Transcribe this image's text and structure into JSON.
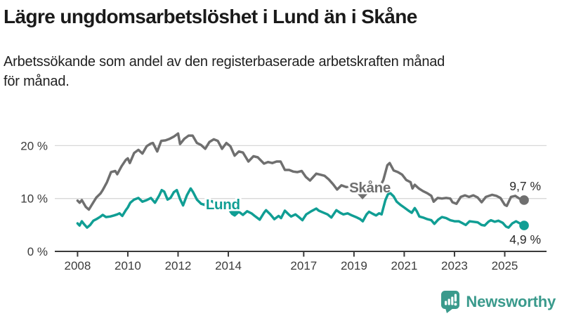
{
  "header": {
    "title": "Lägre ungdomsarbetslöshet i Lund än i Skåne",
    "subtitle_line1": "Arbetssökande som andel av den registerbaserade arbetskraften månad",
    "subtitle_line2": "för månad."
  },
  "branding": {
    "name": "Newsworthy",
    "icon": "newsworthy-speech-bubble-bar-chart-icon",
    "icon_color": "#3a9a8c",
    "text_color": "#3a9a8c"
  },
  "chart_data": {
    "type": "line",
    "title": "Lägre ungdomsarbetslöshet i Lund än i Skåne",
    "subtitle": "Arbetssökande som andel av den registerbaserade arbetskraften månad för månad.",
    "unit": "%",
    "grid": true,
    "legend_position": "inline-labels",
    "x_axis": {
      "range": [
        2007.9,
        2026.6
      ],
      "ticks": [
        {
          "value": 2008,
          "label": "2008"
        },
        {
          "value": 2010,
          "label": "2010"
        },
        {
          "value": 2012,
          "label": "2012"
        },
        {
          "value": 2014,
          "label": "2014"
        },
        {
          "value": 2017,
          "label": "2017"
        },
        {
          "value": 2019,
          "label": "2019"
        },
        {
          "value": 2021,
          "label": "2021"
        },
        {
          "value": 2023,
          "label": "2023"
        },
        {
          "value": 2025,
          "label": "2025"
        }
      ]
    },
    "y_axis": {
      "range": [
        0,
        24
      ],
      "ticks": [
        {
          "value": 0,
          "label": "0 %"
        },
        {
          "value": 10,
          "label": "10 %"
        },
        {
          "value": 20,
          "label": "20 %"
        }
      ]
    },
    "colors": {
      "gridline": "#d8d8d8",
      "axis": "#3a3a3a",
      "tick_text": "#3c3c3c",
      "annotation_text": "#2b2b2b"
    },
    "series": [
      {
        "name": "Skåne",
        "color": "#6f6f6f",
        "end_label": "9,7 %",
        "end_value": 9.7,
        "label_pos": {
          "year": 2018.81,
          "value": 11.15
        },
        "pointer": {
          "year": 2019.34,
          "value": 9.83
        },
        "points": [
          [
            2008.0,
            9.6
          ],
          [
            2008.08,
            9.2
          ],
          [
            2008.17,
            9.7
          ],
          [
            2008.33,
            8.4
          ],
          [
            2008.45,
            7.9
          ],
          [
            2008.58,
            8.9
          ],
          [
            2008.75,
            10.2
          ],
          [
            2008.92,
            11.0
          ],
          [
            2009.0,
            11.6
          ],
          [
            2009.17,
            13.1
          ],
          [
            2009.33,
            15.0
          ],
          [
            2009.5,
            15.2
          ],
          [
            2009.58,
            14.6
          ],
          [
            2009.75,
            16.1
          ],
          [
            2009.92,
            17.3
          ],
          [
            2010.0,
            17.6
          ],
          [
            2010.08,
            16.7
          ],
          [
            2010.25,
            18.6
          ],
          [
            2010.42,
            19.2
          ],
          [
            2010.58,
            18.5
          ],
          [
            2010.75,
            19.9
          ],
          [
            2010.92,
            20.4
          ],
          [
            2011.0,
            20.5
          ],
          [
            2011.17,
            18.9
          ],
          [
            2011.33,
            20.9
          ],
          [
            2011.5,
            21.0
          ],
          [
            2011.67,
            21.3
          ],
          [
            2011.83,
            21.7
          ],
          [
            2012.0,
            22.3
          ],
          [
            2012.08,
            20.3
          ],
          [
            2012.25,
            21.3
          ],
          [
            2012.42,
            21.9
          ],
          [
            2012.58,
            21.9
          ],
          [
            2012.75,
            20.5
          ],
          [
            2012.92,
            20.1
          ],
          [
            2013.08,
            19.4
          ],
          [
            2013.25,
            20.7
          ],
          [
            2013.42,
            21.2
          ],
          [
            2013.58,
            20.9
          ],
          [
            2013.75,
            19.4
          ],
          [
            2013.92,
            20.5
          ],
          [
            2014.08,
            19.9
          ],
          [
            2014.25,
            18.1
          ],
          [
            2014.42,
            18.9
          ],
          [
            2014.58,
            18.7
          ],
          [
            2014.8,
            17.0
          ],
          [
            2015.0,
            18.0
          ],
          [
            2015.17,
            17.8
          ],
          [
            2015.42,
            16.6
          ],
          [
            2015.58,
            16.9
          ],
          [
            2015.75,
            16.7
          ],
          [
            2015.92,
            17.0
          ],
          [
            2016.08,
            17.0
          ],
          [
            2016.25,
            15.4
          ],
          [
            2016.42,
            15.4
          ],
          [
            2016.58,
            15.1
          ],
          [
            2016.75,
            15.0
          ],
          [
            2016.92,
            15.2
          ],
          [
            2017.08,
            14.1
          ],
          [
            2017.25,
            13.4
          ],
          [
            2017.5,
            14.7
          ],
          [
            2017.67,
            14.5
          ],
          [
            2017.83,
            14.3
          ],
          [
            2018.0,
            13.6
          ],
          [
            2018.17,
            12.7
          ],
          [
            2018.33,
            11.7
          ],
          [
            2018.5,
            12.5
          ],
          [
            2018.67,
            12.2
          ],
          [
            2018.83,
            12.1
          ],
          [
            2019.0,
            12.0
          ],
          [
            2019.17,
            11.4
          ],
          [
            2019.33,
            11.6
          ],
          [
            2019.5,
            11.9
          ],
          [
            2019.67,
            11.7
          ],
          [
            2019.83,
            11.5
          ],
          [
            2020.0,
            11.9
          ],
          [
            2020.17,
            13.5
          ],
          [
            2020.33,
            16.3
          ],
          [
            2020.42,
            16.7
          ],
          [
            2020.58,
            15.3
          ],
          [
            2020.75,
            15.0
          ],
          [
            2020.92,
            14.5
          ],
          [
            2021.08,
            13.5
          ],
          [
            2021.25,
            13.1
          ],
          [
            2021.33,
            11.9
          ],
          [
            2021.42,
            12.6
          ],
          [
            2021.58,
            11.9
          ],
          [
            2021.75,
            11.4
          ],
          [
            2021.92,
            11.0
          ],
          [
            2022.08,
            10.5
          ],
          [
            2022.17,
            9.4
          ],
          [
            2022.33,
            10.1
          ],
          [
            2022.5,
            10.0
          ],
          [
            2022.67,
            10.1
          ],
          [
            2022.83,
            10.0
          ],
          [
            2022.92,
            9.3
          ],
          [
            2023.08,
            9.0
          ],
          [
            2023.25,
            10.3
          ],
          [
            2023.42,
            10.6
          ],
          [
            2023.58,
            10.3
          ],
          [
            2023.75,
            10.6
          ],
          [
            2023.92,
            10.2
          ],
          [
            2024.08,
            9.3
          ],
          [
            2024.25,
            10.3
          ],
          [
            2024.5,
            10.7
          ],
          [
            2024.67,
            10.5
          ],
          [
            2024.83,
            10.1
          ],
          [
            2025.0,
            8.8
          ],
          [
            2025.08,
            8.6
          ],
          [
            2025.25,
            10.3
          ],
          [
            2025.42,
            10.5
          ],
          [
            2025.58,
            10.0
          ],
          [
            2025.77,
            9.7
          ]
        ]
      },
      {
        "name": "Lund",
        "color": "#109e94",
        "end_label": "4,9 %",
        "end_value": 4.9,
        "label_pos": {
          "year": 2013.1,
          "value": 7.95
        },
        "pointer": {
          "year": 2014.26,
          "value": 6.64
        },
        "points": [
          [
            2008.0,
            5.3
          ],
          [
            2008.08,
            4.9
          ],
          [
            2008.17,
            5.7
          ],
          [
            2008.25,
            5.2
          ],
          [
            2008.38,
            4.5
          ],
          [
            2008.5,
            5.0
          ],
          [
            2008.63,
            5.8
          ],
          [
            2008.75,
            6.1
          ],
          [
            2008.92,
            6.6
          ],
          [
            2009.0,
            6.9
          ],
          [
            2009.13,
            6.5
          ],
          [
            2009.3,
            6.6
          ],
          [
            2009.45,
            6.8
          ],
          [
            2009.58,
            7.0
          ],
          [
            2009.67,
            7.2
          ],
          [
            2009.78,
            6.7
          ],
          [
            2009.92,
            7.8
          ],
          [
            2010.0,
            8.3
          ],
          [
            2010.1,
            9.2
          ],
          [
            2010.25,
            9.8
          ],
          [
            2010.42,
            10.1
          ],
          [
            2010.58,
            9.4
          ],
          [
            2010.75,
            9.7
          ],
          [
            2010.92,
            10.1
          ],
          [
            2011.08,
            9.2
          ],
          [
            2011.25,
            10.6
          ],
          [
            2011.35,
            11.6
          ],
          [
            2011.45,
            11.3
          ],
          [
            2011.58,
            9.8
          ],
          [
            2011.7,
            10.1
          ],
          [
            2011.83,
            11.2
          ],
          [
            2011.95,
            11.6
          ],
          [
            2012.08,
            9.9
          ],
          [
            2012.2,
            8.7
          ],
          [
            2012.35,
            10.6
          ],
          [
            2012.5,
            11.9
          ],
          [
            2012.6,
            11.2
          ],
          [
            2012.75,
            9.8
          ],
          [
            2012.92,
            9.0
          ],
          [
            2013.05,
            8.8
          ],
          [
            2013.15,
            9.4
          ],
          [
            2013.35,
            9.5
          ],
          [
            2013.5,
            8.9
          ],
          [
            2013.67,
            8.3
          ],
          [
            2013.83,
            8.7
          ],
          [
            2014.0,
            8.1
          ],
          [
            2014.15,
            7.1
          ],
          [
            2014.25,
            6.8
          ],
          [
            2014.42,
            7.5
          ],
          [
            2014.58,
            6.9
          ],
          [
            2014.75,
            7.6
          ],
          [
            2014.92,
            7.2
          ],
          [
            2015.05,
            6.7
          ],
          [
            2015.25,
            6.0
          ],
          [
            2015.42,
            7.3
          ],
          [
            2015.5,
            7.8
          ],
          [
            2015.67,
            7.0
          ],
          [
            2015.83,
            6.1
          ],
          [
            2016.0,
            6.7
          ],
          [
            2016.1,
            6.3
          ],
          [
            2016.25,
            7.7
          ],
          [
            2016.4,
            7.0
          ],
          [
            2016.5,
            6.6
          ],
          [
            2016.67,
            7.0
          ],
          [
            2016.83,
            6.4
          ],
          [
            2016.95,
            5.9
          ],
          [
            2017.1,
            7.0
          ],
          [
            2017.3,
            7.6
          ],
          [
            2017.5,
            8.1
          ],
          [
            2017.6,
            7.7
          ],
          [
            2017.75,
            7.4
          ],
          [
            2017.95,
            7.0
          ],
          [
            2018.1,
            6.4
          ],
          [
            2018.3,
            7.8
          ],
          [
            2018.45,
            7.3
          ],
          [
            2018.58,
            7.0
          ],
          [
            2018.75,
            7.2
          ],
          [
            2018.92,
            6.8
          ],
          [
            2019.08,
            6.5
          ],
          [
            2019.25,
            6.1
          ],
          [
            2019.35,
            5.7
          ],
          [
            2019.5,
            7.0
          ],
          [
            2019.6,
            7.5
          ],
          [
            2019.75,
            7.1
          ],
          [
            2019.88,
            6.8
          ],
          [
            2020.0,
            7.2
          ],
          [
            2020.1,
            7.0
          ],
          [
            2020.25,
            9.7
          ],
          [
            2020.35,
            10.8
          ],
          [
            2020.45,
            11.0
          ],
          [
            2020.58,
            10.4
          ],
          [
            2020.7,
            9.4
          ],
          [
            2020.85,
            8.8
          ],
          [
            2021.0,
            8.3
          ],
          [
            2021.17,
            7.7
          ],
          [
            2021.3,
            7.3
          ],
          [
            2021.42,
            8.2
          ],
          [
            2021.5,
            7.6
          ],
          [
            2021.6,
            6.6
          ],
          [
            2021.75,
            6.4
          ],
          [
            2021.92,
            6.1
          ],
          [
            2022.08,
            5.9
          ],
          [
            2022.2,
            5.2
          ],
          [
            2022.35,
            6.0
          ],
          [
            2022.5,
            6.5
          ],
          [
            2022.67,
            6.3
          ],
          [
            2022.83,
            5.9
          ],
          [
            2023.0,
            5.7
          ],
          [
            2023.17,
            5.7
          ],
          [
            2023.33,
            5.3
          ],
          [
            2023.45,
            5.0
          ],
          [
            2023.6,
            5.7
          ],
          [
            2023.75,
            5.6
          ],
          [
            2023.92,
            5.5
          ],
          [
            2024.08,
            5.0
          ],
          [
            2024.2,
            4.9
          ],
          [
            2024.35,
            5.6
          ],
          [
            2024.45,
            5.9
          ],
          [
            2024.6,
            5.6
          ],
          [
            2024.75,
            5.8
          ],
          [
            2024.92,
            5.4
          ],
          [
            2025.05,
            4.7
          ],
          [
            2025.15,
            4.5
          ],
          [
            2025.3,
            5.3
          ],
          [
            2025.45,
            5.7
          ],
          [
            2025.6,
            5.3
          ],
          [
            2025.77,
            4.9
          ]
        ]
      }
    ]
  }
}
